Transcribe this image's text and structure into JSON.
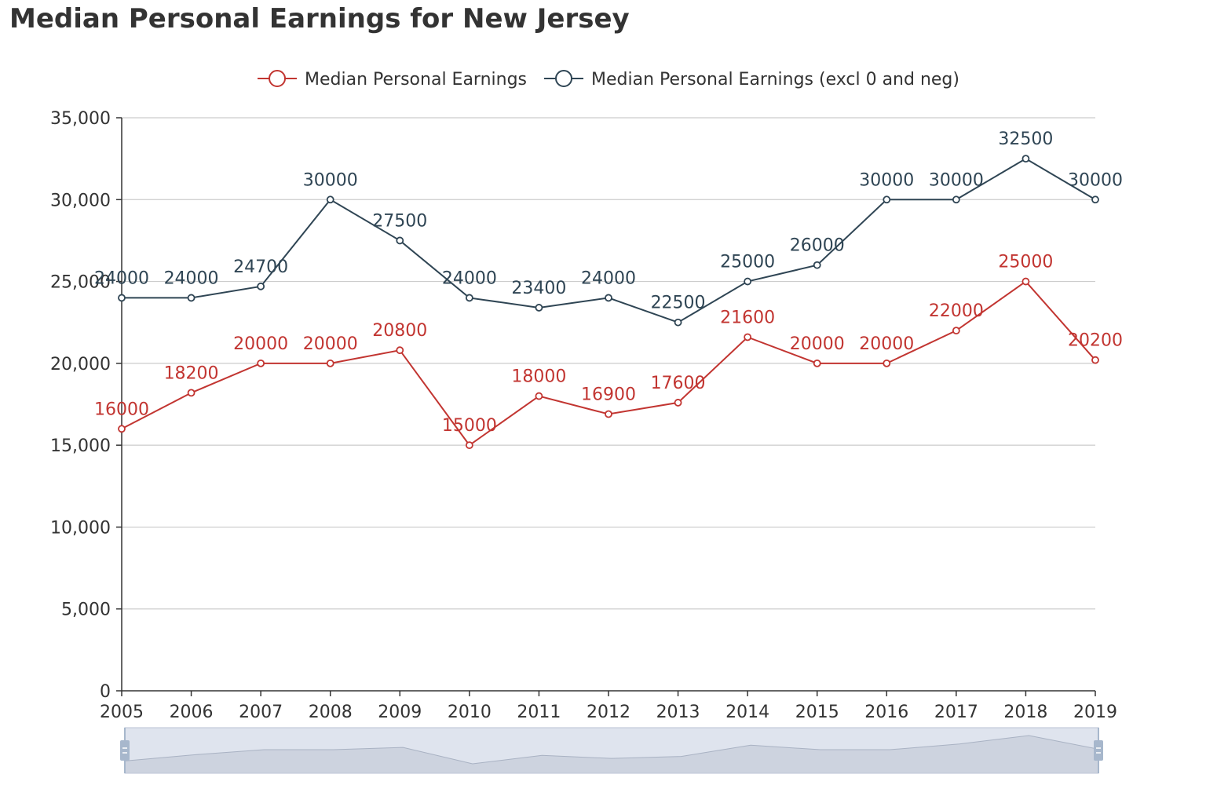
{
  "chart_data": {
    "type": "line",
    "title": "Median Personal Earnings for New Jersey",
    "xlabel": "",
    "ylabel": "",
    "categories": [
      "2005",
      "2006",
      "2007",
      "2008",
      "2009",
      "2010",
      "2011",
      "2012",
      "2013",
      "2014",
      "2015",
      "2016",
      "2017",
      "2018",
      "2019"
    ],
    "ylim": [
      0,
      35000
    ],
    "yticks": [
      "0",
      "5,000",
      "10,000",
      "15,000",
      "20,000",
      "25,000",
      "30,000",
      "35,000"
    ],
    "grid": true,
    "legend_position": "top",
    "series": [
      {
        "name": "Median Personal Earnings",
        "color": "#c23531",
        "values": [
          16000,
          18200,
          20000,
          20000,
          20800,
          15000,
          18000,
          16900,
          17600,
          21600,
          20000,
          20000,
          22000,
          25000,
          20200
        ]
      },
      {
        "name": "Median Personal Earnings (excl 0 and neg)",
        "color": "#2f4554",
        "values": [
          24000,
          24000,
          24700,
          30000,
          27500,
          24000,
          23400,
          24000,
          22500,
          25000,
          26000,
          30000,
          30000,
          32500,
          30000
        ]
      }
    ],
    "data_zoom": {
      "start": 0,
      "end": 100
    }
  }
}
